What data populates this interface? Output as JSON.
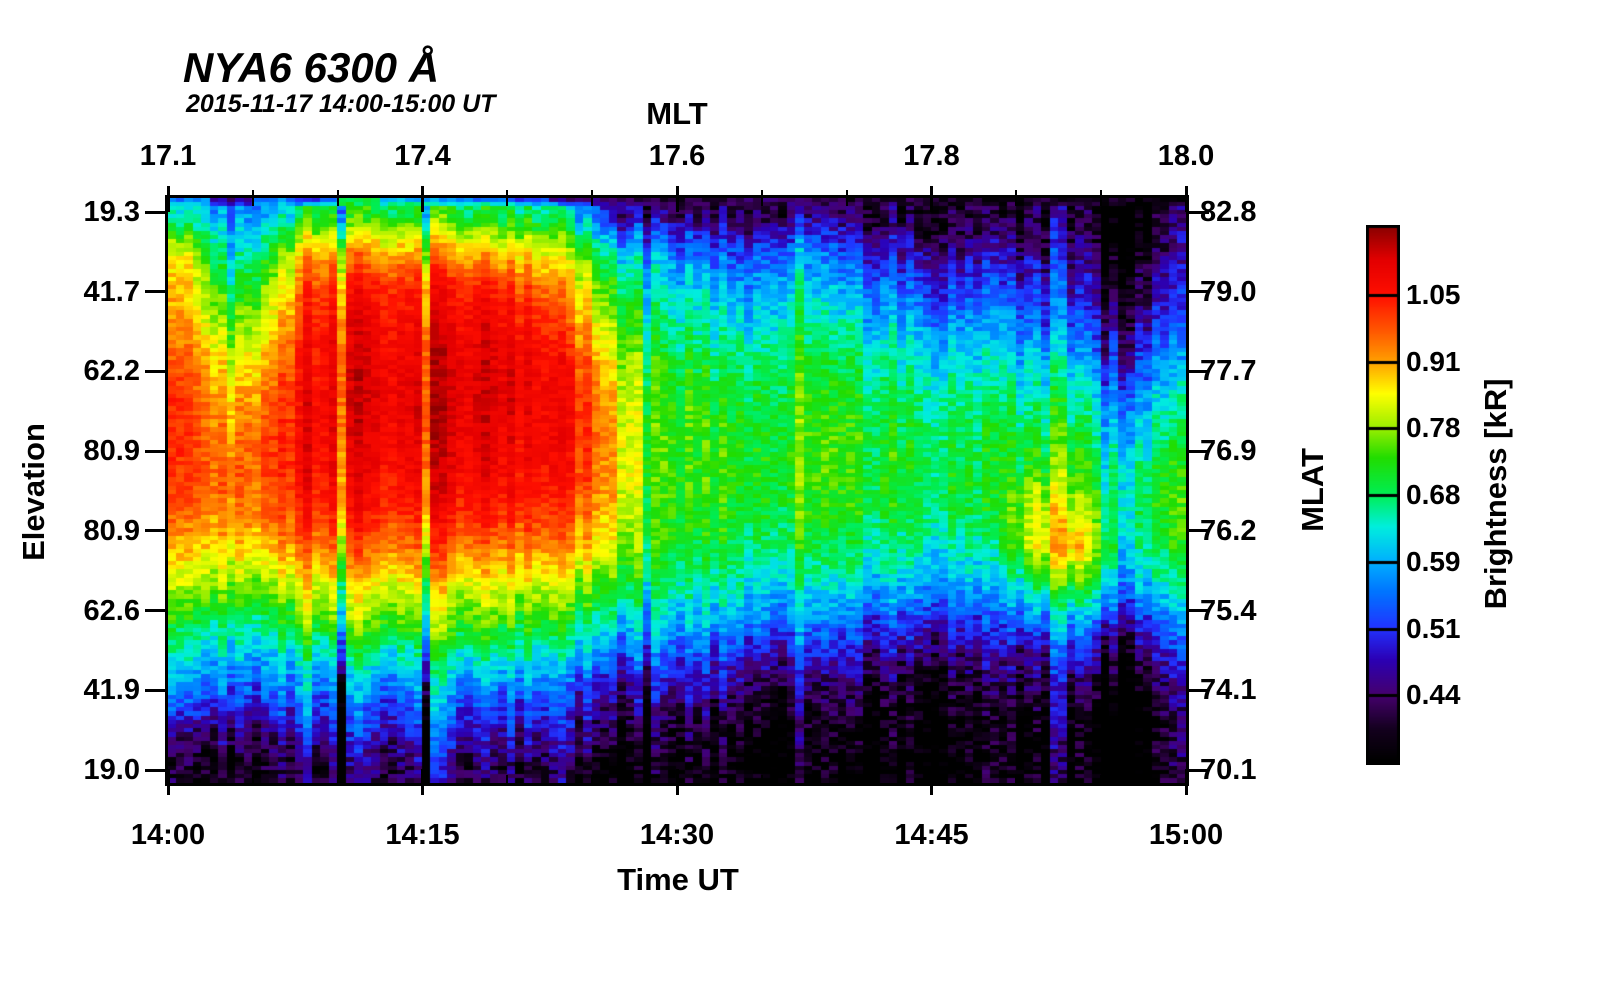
{
  "chart_data": {
    "type": "heatmap",
    "title": "NYA6 6300 Å",
    "subtitle": "2015-11-17 14:00-15:00 UT",
    "axes": {
      "top": {
        "label": "MLT",
        "tick_labels": [
          "17.1",
          "17.4",
          "17.6",
          "17.8",
          "18.0"
        ]
      },
      "bottom": {
        "label": "Time UT",
        "tick_labels": [
          "14:00",
          "14:15",
          "14:30",
          "14:45",
          "15:00"
        ]
      },
      "left": {
        "label": "Elevation",
        "tick_labels": [
          "19.3",
          "41.7",
          "62.2",
          "80.9",
          "80.9",
          "62.6",
          "41.9",
          "19.0"
        ]
      },
      "right": {
        "label": "MLAT",
        "tick_labels": [
          "82.8",
          "79.0",
          "77.7",
          "76.9",
          "76.2",
          "75.4",
          "74.1",
          "70.1"
        ]
      }
    },
    "colorbar": {
      "label": "Brightness [kR]",
      "tick_labels": [
        "1.05",
        "0.91",
        "0.78",
        "0.68",
        "0.59",
        "0.51",
        "0.44"
      ],
      "value_min": 0.385,
      "value_max": 1.21,
      "scale": "log",
      "colormap_stops": [
        [
          0.0,
          "#000000"
        ],
        [
          0.06,
          "#14001e"
        ],
        [
          0.125,
          "#46006e"
        ],
        [
          0.19,
          "#2c00b4"
        ],
        [
          0.25,
          "#2233ff"
        ],
        [
          0.32,
          "#0077ff"
        ],
        [
          0.375,
          "#00b0ff"
        ],
        [
          0.44,
          "#00eede"
        ],
        [
          0.5,
          "#00ee55"
        ],
        [
          0.57,
          "#22dd00"
        ],
        [
          0.625,
          "#99ee00"
        ],
        [
          0.69,
          "#ffff00"
        ],
        [
          0.75,
          "#ffa000"
        ],
        [
          0.81,
          "#ff5500"
        ],
        [
          0.875,
          "#ff0f00"
        ],
        [
          0.94,
          "#e40000"
        ],
        [
          1.0,
          "#8f0000"
        ]
      ]
    },
    "time_start": "14:00",
    "time_end": "15:00",
    "time_bin_minutes": 2.5,
    "grid_rows_top_to_bottom": 16,
    "values_kR": [
      [
        0.62,
        0.56,
        0.6,
        0.7,
        0.72,
        0.72,
        0.7,
        0.7,
        0.68,
        0.62,
        0.5,
        0.46,
        0.44,
        0.44,
        0.45,
        0.44,
        0.43,
        0.42,
        0.42,
        0.41,
        0.42,
        0.41,
        0.4,
        0.4
      ],
      [
        0.82,
        0.62,
        0.72,
        0.9,
        0.92,
        0.9,
        0.88,
        0.9,
        0.85,
        0.78,
        0.66,
        0.58,
        0.54,
        0.52,
        0.56,
        0.54,
        0.5,
        0.48,
        0.47,
        0.46,
        0.46,
        0.44,
        0.43,
        0.42
      ],
      [
        0.86,
        0.68,
        0.8,
        1.0,
        1.05,
        1.04,
        1.02,
        1.05,
        0.98,
        0.88,
        0.74,
        0.64,
        0.6,
        0.58,
        0.62,
        0.6,
        0.56,
        0.54,
        0.52,
        0.51,
        0.5,
        0.48,
        0.46,
        0.45
      ],
      [
        0.9,
        0.75,
        0.86,
        1.05,
        1.1,
        1.08,
        1.07,
        1.1,
        1.05,
        0.95,
        0.8,
        0.68,
        0.65,
        0.63,
        0.66,
        0.65,
        0.62,
        0.6,
        0.58,
        0.57,
        0.55,
        0.52,
        0.5,
        0.49
      ],
      [
        0.95,
        0.82,
        0.92,
        1.07,
        1.12,
        1.1,
        1.1,
        1.13,
        1.08,
        1.02,
        0.86,
        0.72,
        0.69,
        0.68,
        0.7,
        0.69,
        0.67,
        0.65,
        0.63,
        0.62,
        0.61,
        0.58,
        0.55,
        0.54
      ],
      [
        0.99,
        0.88,
        0.97,
        1.08,
        1.12,
        1.11,
        1.11,
        1.13,
        1.09,
        1.05,
        0.9,
        0.74,
        0.72,
        0.71,
        0.72,
        0.72,
        0.7,
        0.69,
        0.67,
        0.66,
        0.66,
        0.64,
        0.61,
        0.6
      ],
      [
        1.0,
        0.92,
        1.0,
        1.08,
        1.11,
        1.1,
        1.1,
        1.12,
        1.08,
        1.05,
        0.92,
        0.75,
        0.73,
        0.72,
        0.73,
        0.74,
        0.72,
        0.71,
        0.7,
        0.69,
        0.7,
        0.69,
        0.66,
        0.65
      ],
      [
        0.99,
        0.95,
        1.0,
        1.07,
        1.09,
        1.08,
        1.08,
        1.1,
        1.06,
        1.03,
        0.92,
        0.75,
        0.73,
        0.73,
        0.73,
        0.74,
        0.72,
        0.72,
        0.71,
        0.7,
        0.74,
        0.73,
        0.7,
        0.69
      ],
      [
        0.95,
        0.93,
        0.97,
        1.03,
        1.05,
        1.04,
        1.03,
        1.05,
        1.02,
        0.98,
        0.9,
        0.74,
        0.72,
        0.72,
        0.72,
        0.72,
        0.71,
        0.7,
        0.7,
        0.69,
        0.83,
        0.8,
        0.72,
        0.71
      ],
      [
        0.88,
        0.87,
        0.9,
        0.95,
        0.97,
        0.96,
        0.95,
        0.96,
        0.94,
        0.9,
        0.85,
        0.72,
        0.7,
        0.7,
        0.69,
        0.69,
        0.68,
        0.67,
        0.66,
        0.65,
        0.85,
        0.88,
        0.7,
        0.68
      ],
      [
        0.8,
        0.78,
        0.8,
        0.84,
        0.86,
        0.85,
        0.84,
        0.85,
        0.83,
        0.79,
        0.76,
        0.68,
        0.66,
        0.65,
        0.64,
        0.63,
        0.62,
        0.61,
        0.6,
        0.59,
        0.7,
        0.74,
        0.64,
        0.62
      ],
      [
        0.7,
        0.68,
        0.7,
        0.75,
        0.77,
        0.76,
        0.75,
        0.76,
        0.74,
        0.7,
        0.67,
        0.62,
        0.6,
        0.58,
        0.57,
        0.55,
        0.54,
        0.53,
        0.52,
        0.51,
        0.56,
        0.58,
        0.55,
        0.54
      ],
      [
        0.62,
        0.6,
        0.61,
        0.64,
        0.66,
        0.65,
        0.65,
        0.66,
        0.63,
        0.6,
        0.57,
        0.54,
        0.52,
        0.5,
        0.49,
        0.48,
        0.47,
        0.46,
        0.45,
        0.45,
        0.47,
        0.48,
        0.47,
        0.46
      ],
      [
        0.55,
        0.53,
        0.54,
        0.55,
        0.56,
        0.56,
        0.56,
        0.55,
        0.54,
        0.5,
        0.49,
        0.47,
        0.46,
        0.44,
        0.43,
        0.42,
        0.42,
        0.41,
        0.41,
        0.41,
        0.42,
        0.42,
        0.42,
        0.41
      ],
      [
        0.45,
        0.46,
        0.47,
        0.49,
        0.5,
        0.5,
        0.5,
        0.49,
        0.48,
        0.46,
        0.44,
        0.42,
        0.41,
        0.4,
        0.395,
        0.39,
        0.39,
        0.39,
        0.39,
        0.385,
        0.39,
        0.39,
        0.39,
        0.385
      ],
      [
        0.395,
        0.4,
        0.41,
        0.43,
        0.44,
        0.44,
        0.44,
        0.43,
        0.42,
        0.41,
        0.4,
        0.39,
        0.385,
        0.385,
        0.385,
        0.385,
        0.385,
        0.385,
        0.385,
        0.385,
        0.385,
        0.385,
        0.385,
        0.385
      ]
    ],
    "top_edge_kR": [
      0.56,
      0.46,
      0.56,
      0.52,
      0.7,
      0.6,
      0.58,
      0.56,
      0.52,
      0.46,
      0.44,
      0.42,
      0.42,
      0.43,
      0.44,
      0.43,
      0.42,
      0.42,
      0.41,
      0.41,
      0.41,
      0.4,
      0.4,
      0.4
    ],
    "streaks": [
      {
        "x": 0.132,
        "w": 0.012,
        "d": 0.05
      },
      {
        "x": 0.174,
        "w": 0.01,
        "d": -0.15
      },
      {
        "x": 0.191,
        "w": 0.009,
        "d": 0.06
      },
      {
        "x": 0.255,
        "w": 0.008,
        "d": -0.12
      },
      {
        "x": 0.268,
        "w": 0.013,
        "d": 0.06
      },
      {
        "x": 0.391,
        "w": 0.015,
        "d": 0.05
      },
      {
        "x": 0.449,
        "w": 0.01,
        "d": -0.08
      },
      {
        "x": 0.472,
        "w": 0.007,
        "d": -0.06
      },
      {
        "x": 0.621,
        "w": 0.012,
        "d": 0.05
      },
      {
        "x": 0.755,
        "w": 0.014,
        "d": -0.04
      },
      {
        "x": 0.875,
        "w": 0.01,
        "d": 0.05
      },
      {
        "x": 0.93,
        "w": 0.035,
        "d": -0.055
      },
      {
        "x": 0.99,
        "w": 0.014,
        "d": 0.05
      }
    ]
  },
  "render": {
    "columns": 120,
    "rows": 140,
    "column_jitter": 0.03,
    "cell_noise": 0.04,
    "seed": 20151117
  }
}
